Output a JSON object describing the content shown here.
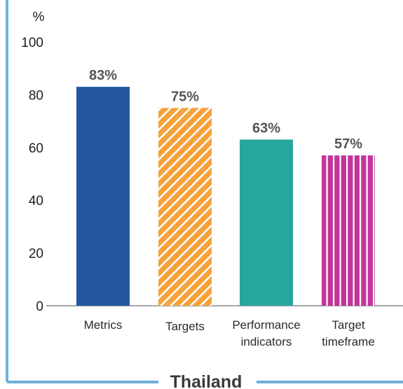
{
  "chart_data": {
    "type": "bar",
    "title": "Thailand",
    "ylabel": "%",
    "xlabel": "",
    "ylim": [
      0,
      100
    ],
    "yticks": [
      0,
      20,
      40,
      60,
      80,
      100
    ],
    "grid": false,
    "categories": [
      "Metrics",
      "Targets",
      "Performance indicators",
      "Target timeframe"
    ],
    "category_lines": [
      [
        "Metrics"
      ],
      [
        "Targets"
      ],
      [
        "Performance",
        "indicators"
      ],
      [
        "Target",
        "timeframe"
      ]
    ],
    "values": [
      83,
      75,
      63,
      57
    ],
    "value_labels": [
      "83%",
      "75%",
      "63%",
      "57%"
    ],
    "bar_styles": [
      {
        "fill": "#2456a0",
        "pattern": "solid"
      },
      {
        "fill": "#f6a13a",
        "pattern": "diagonal-stripes",
        "stripe_color": "#ffffff"
      },
      {
        "fill": "#27a69d",
        "pattern": "solid"
      },
      {
        "fill": "#c2369b",
        "pattern": "vertical-stripes",
        "stripe_color": "#ffffff"
      }
    ],
    "frame_color": "#6fb0dc"
  }
}
